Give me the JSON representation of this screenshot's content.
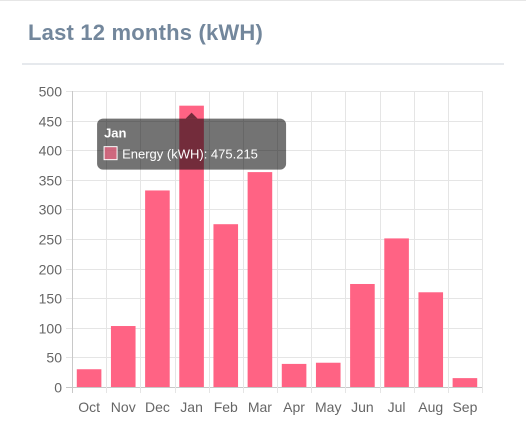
{
  "panel": {
    "title": "Last 12 months (kWH)"
  },
  "chart_data": {
    "type": "bar",
    "categories": [
      "Oct",
      "Nov",
      "Dec",
      "Jan",
      "Feb",
      "Mar",
      "Apr",
      "May",
      "Jun",
      "Jul",
      "Aug",
      "Sep"
    ],
    "series": [
      {
        "name": "Energy (kWH)",
        "values": [
          30,
          103,
          332,
          475.215,
          275,
          363,
          39,
          41,
          174,
          251,
          160,
          15
        ],
        "color": "#ff6384"
      }
    ],
    "ylim": [
      0,
      500
    ],
    "yticks": [
      0,
      50,
      100,
      150,
      200,
      250,
      300,
      350,
      400,
      450,
      500
    ],
    "grid": true,
    "legend": "none",
    "tooltip": {
      "title": "Jan",
      "label": "Energy (kWH): 475.215",
      "category_index": 3
    }
  }
}
